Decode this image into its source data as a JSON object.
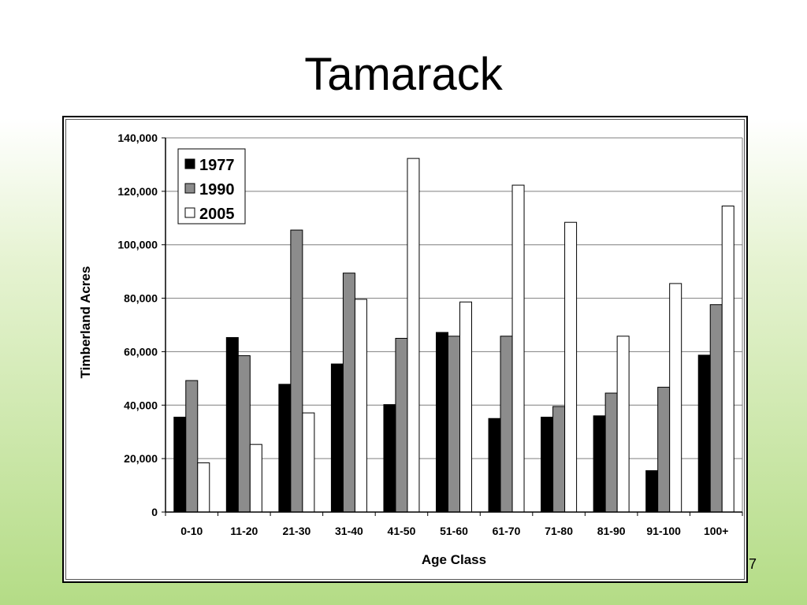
{
  "slide": {
    "title": "Tamarack",
    "page_number": "7"
  },
  "colors": {
    "series_1977": "#000000",
    "series_1990": "#8c8c8c",
    "series_2005": "#ffffff",
    "gridline": "#7f7f7f",
    "background_bottom": "#b4dc86"
  },
  "chart_data": {
    "type": "bar",
    "title": "",
    "xlabel": "Age Class",
    "ylabel": "Timberland Acres",
    "ylim": [
      0,
      140000
    ],
    "yticks": [
      0,
      20000,
      40000,
      60000,
      80000,
      100000,
      120000,
      140000
    ],
    "ytick_labels": [
      "0",
      "20,000",
      "40,000",
      "60,000",
      "80,000",
      "100,000",
      "120,000",
      "140,000"
    ],
    "grid": true,
    "legend_position": "top-left",
    "categories": [
      "0-10",
      "11-20",
      "21-30",
      "31-40",
      "41-50",
      "51-60",
      "61-70",
      "71-80",
      "81-90",
      "91-100",
      "100+"
    ],
    "series": [
      {
        "name": "1977",
        "color": "#000000",
        "values": [
          35500,
          65300,
          47800,
          55400,
          40200,
          67200,
          35000,
          35500,
          36000,
          15500,
          58700
        ]
      },
      {
        "name": "1990",
        "color": "#8c8c8c",
        "values": [
          49200,
          58500,
          105500,
          89400,
          65000,
          65800,
          65800,
          39500,
          44500,
          46700,
          77600
        ]
      },
      {
        "name": "2005",
        "color": "#ffffff",
        "values": [
          18400,
          25300,
          37100,
          79600,
          132300,
          78600,
          122300,
          108400,
          65800,
          85500,
          114500
        ]
      }
    ]
  }
}
